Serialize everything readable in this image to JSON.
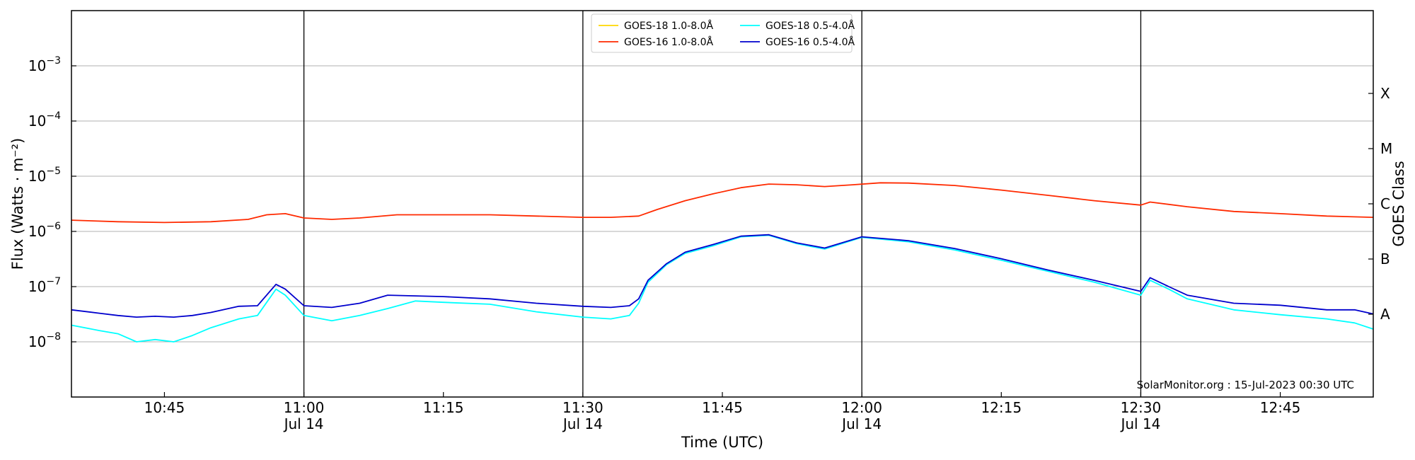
{
  "chart_data": {
    "type": "line",
    "xlabel": "Time (UTC)",
    "ylabel": "Flux (Watts · m⁻²)",
    "ylabel_right": "GOES Class",
    "yscale": "log",
    "ylim": [
      1e-09,
      0.01
    ],
    "xlim": [
      "10:35",
      "12:55"
    ],
    "grid": "horizontal",
    "legend_position": "top-center",
    "x_tick_labels": [
      {
        "t": "10:45",
        "label": "10:45",
        "sub": ""
      },
      {
        "t": "11:00",
        "label": "11:00",
        "sub": "Jul 14"
      },
      {
        "t": "11:15",
        "label": "11:15",
        "sub": ""
      },
      {
        "t": "11:30",
        "label": "11:30",
        "sub": "Jul 14"
      },
      {
        "t": "11:45",
        "label": "11:45",
        "sub": ""
      },
      {
        "t": "12:00",
        "label": "12:00",
        "sub": "Jul 14"
      },
      {
        "t": "12:15",
        "label": "12:15",
        "sub": ""
      },
      {
        "t": "12:30",
        "label": "12:30",
        "sub": "Jul 14"
      },
      {
        "t": "12:45",
        "label": "12:45",
        "sub": ""
      }
    ],
    "vertical_lines": [
      "11:00",
      "11:30",
      "12:00",
      "12:30"
    ],
    "y_tick_labels": [
      {
        "exp": -8,
        "base": "10",
        "sup": "−8"
      },
      {
        "exp": -7,
        "base": "10",
        "sup": "−7"
      },
      {
        "exp": -6,
        "base": "10",
        "sup": "−6"
      },
      {
        "exp": -5,
        "base": "10",
        "sup": "−5"
      },
      {
        "exp": -4,
        "base": "10",
        "sup": "−4"
      },
      {
        "exp": -3,
        "base": "10",
        "sup": "−3"
      }
    ],
    "goes_classes": [
      {
        "label": "A",
        "exp": -7.5
      },
      {
        "label": "B",
        "exp": -6.5
      },
      {
        "label": "C",
        "exp": -5.5
      },
      {
        "label": "M",
        "exp": -4.5
      },
      {
        "label": "X",
        "exp": -3.5
      }
    ],
    "series": [
      {
        "name": "GOES-18 1.0-8.0Å",
        "color": "#ffd700",
        "x": [],
        "y": []
      },
      {
        "name": "GOES-16 1.0-8.0Å",
        "color": "#ff2a00",
        "x": [
          "10:35",
          "10:40",
          "10:45",
          "10:50",
          "10:54",
          "10:56",
          "10:58",
          "11:00",
          "11:03",
          "11:06",
          "11:10",
          "11:15",
          "11:20",
          "11:25",
          "11:30",
          "11:33",
          "11:36",
          "11:38",
          "11:41",
          "11:44",
          "11:47",
          "11:50",
          "11:53",
          "11:56",
          "11:59",
          "12:02",
          "12:05",
          "12:10",
          "12:15",
          "12:20",
          "12:25",
          "12:30",
          "12:31",
          "12:35",
          "12:40",
          "12:45",
          "12:50",
          "12:55"
        ],
        "y": [
          1.6e-06,
          1.5e-06,
          1.45e-06,
          1.5e-06,
          1.65e-06,
          2e-06,
          2.1e-06,
          1.75e-06,
          1.65e-06,
          1.75e-06,
          2e-06,
          2e-06,
          2e-06,
          1.9e-06,
          1.8e-06,
          1.8e-06,
          1.9e-06,
          2.5e-06,
          3.6e-06,
          4.8e-06,
          6.2e-06,
          7.2e-06,
          7e-06,
          6.5e-06,
          7e-06,
          7.6e-06,
          7.5e-06,
          6.8e-06,
          5.6e-06,
          4.5e-06,
          3.6e-06,
          3e-06,
          3.4e-06,
          2.8e-06,
          2.3e-06,
          2.1e-06,
          1.9e-06,
          1.8e-06
        ]
      },
      {
        "name": "GOES-18 0.5-4.0Å",
        "color": "#00ffff",
        "x": [
          "10:35",
          "10:38",
          "10:40",
          "10:42",
          "10:44",
          "10:46",
          "10:48",
          "10:50",
          "10:53",
          "10:55",
          "10:57",
          "10:58",
          "11:00",
          "11:03",
          "11:06",
          "11:09",
          "11:12",
          "11:15",
          "11:20",
          "11:25",
          "11:30",
          "11:33",
          "11:35",
          "11:36",
          "11:37",
          "11:39",
          "11:41",
          "11:44",
          "11:47",
          "11:50",
          "11:53",
          "11:56",
          "12:00",
          "12:05",
          "12:10",
          "12:15",
          "12:20",
          "12:25",
          "12:30",
          "12:31",
          "12:33",
          "12:35",
          "12:40",
          "12:45",
          "12:50",
          "12:53",
          "12:55"
        ],
        "y": [
          2e-08,
          1.6e-08,
          1.4e-08,
          1e-08,
          1.1e-08,
          1e-08,
          1.3e-08,
          1.8e-08,
          2.6e-08,
          3e-08,
          9e-08,
          7e-08,
          3e-08,
          2.4e-08,
          3e-08,
          4e-08,
          5.5e-08,
          5.2e-08,
          4.8e-08,
          3.5e-08,
          2.8e-08,
          2.6e-08,
          3e-08,
          5e-08,
          1.2e-07,
          2.5e-07,
          4e-07,
          5.5e-07,
          8e-07,
          8.5e-07,
          6e-07,
          4.8e-07,
          7.8e-07,
          6.5e-07,
          4.6e-07,
          3e-07,
          1.9e-07,
          1.2e-07,
          7e-08,
          1.3e-07,
          9e-08,
          6e-08,
          3.8e-08,
          3.1e-08,
          2.6e-08,
          2.2e-08,
          1.7e-08
        ]
      },
      {
        "name": "GOES-16 0.5-4.0Å",
        "color": "#0000cd",
        "x": [
          "10:35",
          "10:38",
          "10:40",
          "10:42",
          "10:44",
          "10:46",
          "10:48",
          "10:50",
          "10:53",
          "10:55",
          "10:57",
          "10:58",
          "11:00",
          "11:03",
          "11:06",
          "11:09",
          "11:12",
          "11:15",
          "11:20",
          "11:25",
          "11:30",
          "11:33",
          "11:35",
          "11:36",
          "11:37",
          "11:39",
          "11:41",
          "11:44",
          "11:47",
          "11:50",
          "11:53",
          "11:56",
          "12:00",
          "12:05",
          "12:10",
          "12:15",
          "12:20",
          "12:25",
          "12:30",
          "12:31",
          "12:33",
          "12:35",
          "12:40",
          "12:45",
          "12:50",
          "12:53",
          "12:55"
        ],
        "y": [
          3.8e-08,
          3.3e-08,
          3e-08,
          2.8e-08,
          2.9e-08,
          2.8e-08,
          3e-08,
          3.4e-08,
          4.4e-08,
          4.5e-08,
          1.1e-07,
          9e-08,
          4.5e-08,
          4.2e-08,
          5e-08,
          7e-08,
          6.8e-08,
          6.6e-08,
          6e-08,
          5e-08,
          4.4e-08,
          4.2e-08,
          4.5e-08,
          6e-08,
          1.3e-07,
          2.6e-07,
          4.2e-07,
          5.8e-07,
          8.2e-07,
          8.7e-07,
          6.2e-07,
          5e-07,
          8e-07,
          6.8e-07,
          4.9e-07,
          3.2e-07,
          2e-07,
          1.3e-07,
          8.2e-08,
          1.45e-07,
          1e-07,
          7e-08,
          5e-08,
          4.6e-08,
          3.8e-08,
          3.8e-08,
          3.2e-08
        ]
      }
    ],
    "credit": "SolarMonitor.org : 15-Jul-2023 00:30 UTC"
  }
}
